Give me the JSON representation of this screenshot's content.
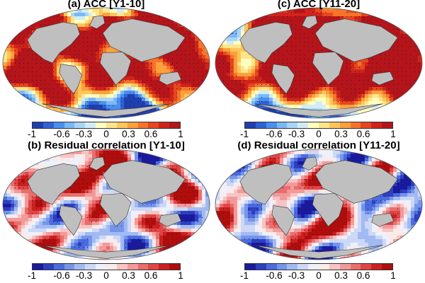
{
  "panels": [
    {
      "id": "a",
      "title": "(a) ACC [Y1-10]",
      "palette": "warm"
    },
    {
      "id": "c",
      "title": "(c) ACC [Y11-20]",
      "palette": "warm"
    },
    {
      "id": "b",
      "title": "(b) Residual correlation [Y1-10]",
      "palette": "diverging"
    },
    {
      "id": "d",
      "title": "(d) Residual correlation [Y11-20]",
      "palette": "diverging"
    }
  ],
  "colorbar_ticks": [
    "-1",
    "-0.6",
    "-0.3",
    "0",
    "0.3",
    "0.6",
    "1"
  ],
  "colorbar_tick_values": [
    -1,
    -0.6,
    -0.3,
    0,
    0.3,
    0.6,
    1
  ],
  "palettes": {
    "warm": [
      "#1f3fae",
      "#2f62d8",
      "#4a8ff0",
      "#7ab8f7",
      "#a8d6f7",
      "#d2ecf7",
      "#ffffbf",
      "#fde58a",
      "#fdc55a",
      "#fba03c",
      "#f5742a",
      "#e8461e",
      "#d1231a",
      "#b5141a"
    ],
    "diverging": [
      "#1a1a9e",
      "#2e3fc4",
      "#4b6ce0",
      "#7595ea",
      "#a2baf2",
      "#ccd8f6",
      "#eef0fb",
      "#fbeaea",
      "#f7c4c4",
      "#f29a9a",
      "#ea6e6e",
      "#e04545",
      "#cc2020",
      "#b00d0d"
    ]
  },
  "colors": {
    "land": "#bfbfbf",
    "coast": "#333333"
  }
}
